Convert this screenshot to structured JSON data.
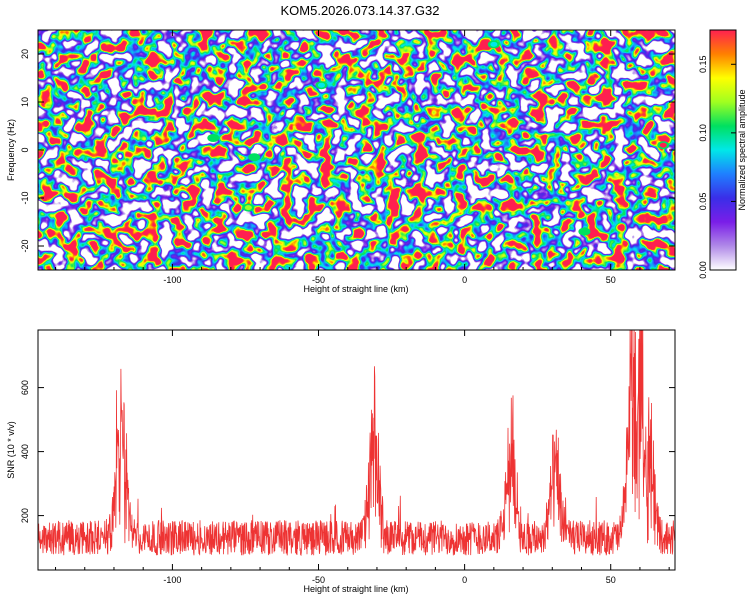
{
  "title": "KOM5.2026.073.14.37.G32",
  "colors": {
    "signal": "#ee3333",
    "colormap_stops": [
      "#ffffff",
      "#b089e8",
      "#7a1ee8",
      "#3a2ee8",
      "#1f7fff",
      "#00e8e8",
      "#00e060",
      "#a0ff20",
      "#ffff00",
      "#ff8000",
      "#ff2050"
    ]
  },
  "chart_data": [
    {
      "type": "heatmap",
      "xlabel": "Height of straight line (km)",
      "ylabel": "Frequency (Hz)",
      "xlim": [
        -146,
        72
      ],
      "ylim": [
        -25,
        25
      ],
      "xticks": [
        -100,
        -50,
        0,
        50
      ],
      "xtick_labels": [
        "-100",
        "-50",
        "0",
        "50"
      ],
      "yticks": [
        -20,
        -10,
        0,
        10,
        20
      ],
      "ytick_labels": [
        "-20",
        "-10",
        "0",
        "10",
        "20"
      ],
      "colorbar": {
        "label": "Normalized spectral amplitude",
        "range": [
          0,
          0.175
        ],
        "ticks": [
          0,
          0.05,
          0.1,
          0.15
        ],
        "tick_labels": [
          "0.00",
          "0.05",
          "0.10",
          "0.15"
        ]
      },
      "peaks": [
        {
          "x": 68,
          "y": 1,
          "value": 0.17
        },
        {
          "x": -74,
          "y": -12,
          "value": 0.12
        },
        {
          "x": 41,
          "y": -17,
          "value": 0.11
        },
        {
          "x": -72,
          "y": -1.5,
          "value": 0.105
        },
        {
          "x": -86,
          "y": 2.5,
          "value": 0.1
        },
        {
          "x": -49,
          "y": 13.5,
          "value": 0.09
        },
        {
          "x": 10,
          "y": 22,
          "value": 0.08
        }
      ]
    },
    {
      "type": "line",
      "xlabel": "Height of straight line (km)",
      "ylabel": "SNR (10 * v/v)",
      "xlim": [
        -146,
        72
      ],
      "ylim": [
        30,
        780
      ],
      "xticks": [
        -100,
        -50,
        0,
        50
      ],
      "xtick_labels": [
        "-100",
        "-50",
        "0",
        "50"
      ],
      "yticks": [
        200,
        400,
        600
      ],
      "ytick_labels": [
        "200",
        "400",
        "600"
      ],
      "baseline": 125,
      "noise_amplitude": 55,
      "peaks": [
        {
          "x": -117.5,
          "y": 590
        },
        {
          "x": -31,
          "y": 490
        },
        {
          "x": 16,
          "y": 445
        },
        {
          "x": 31,
          "y": 385
        },
        {
          "x": 57.5,
          "y": 775
        },
        {
          "x": 60,
          "y": 690
        },
        {
          "x": 63,
          "y": 500
        }
      ]
    }
  ]
}
